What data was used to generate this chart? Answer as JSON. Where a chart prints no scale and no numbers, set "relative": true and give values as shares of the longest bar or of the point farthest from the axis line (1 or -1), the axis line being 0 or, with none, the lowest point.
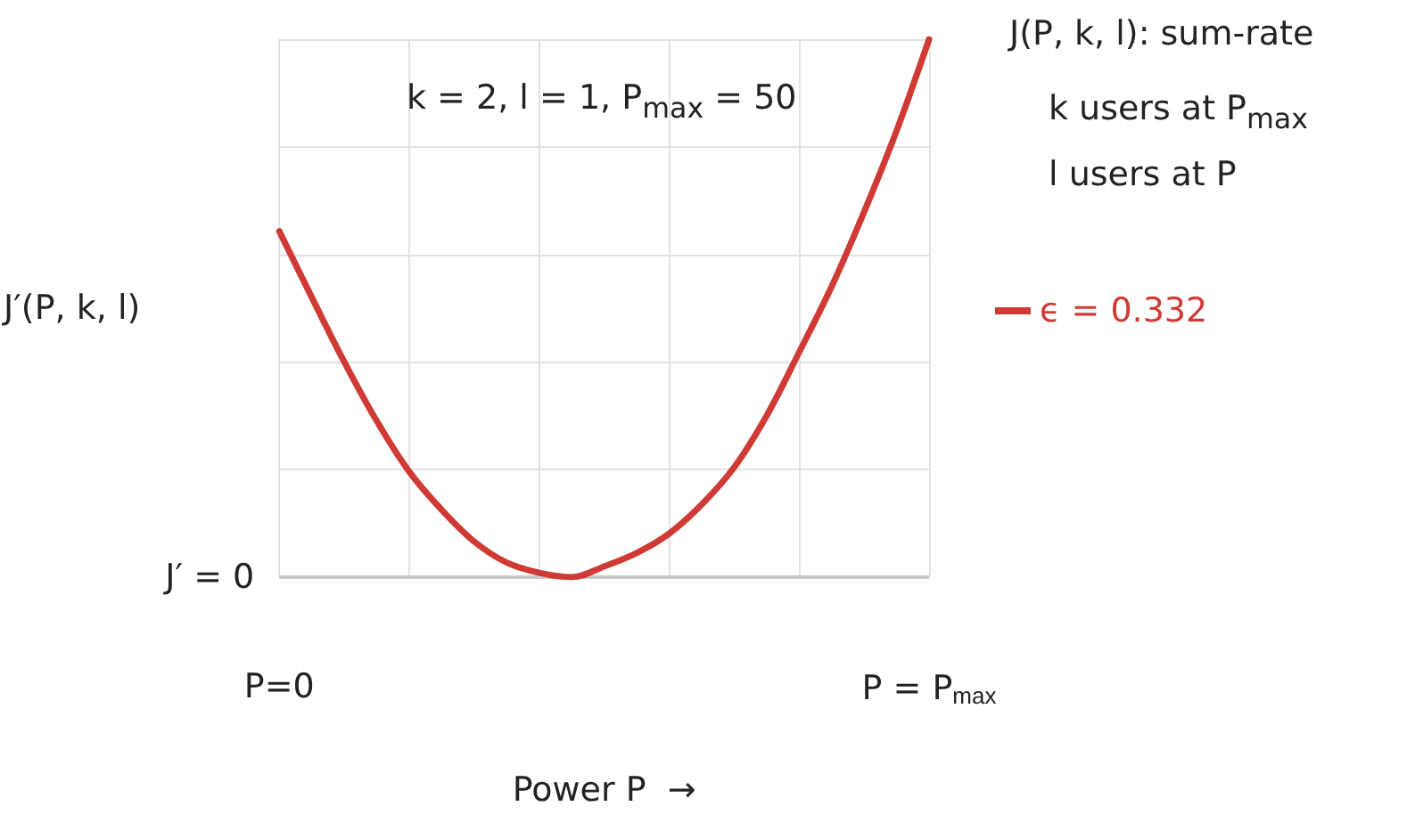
{
  "chart_data": {
    "type": "line",
    "relative": true,
    "categories": [
      "P=0",
      null,
      null,
      null,
      null,
      null,
      null,
      null,
      null,
      null,
      null,
      null,
      null,
      null,
      null,
      null,
      null,
      null,
      null,
      null,
      "P = P$_{max}$"
    ],
    "series": [
      {
        "name": "ϵ = 0.332",
        "color": "#d03a35",
        "values": [
          0.643,
          0.52,
          0.4,
          0.29,
          0.196,
          0.125,
          0.066,
          0.027,
          0.008,
          0,
          0.02,
          0.045,
          0.081,
          0.135,
          0.204,
          0.3,
          0.418,
          0.54,
          0.679,
          0.83,
          1
        ]
      }
    ],
    "xlabel": "Power P  →",
    "ylabel": "J′(P, k, l)",
    "ref_lines": [
      {
        "axis": "y",
        "value": 0,
        "label": "J′ = 0",
        "color": "#c8c8c8"
      }
    ],
    "annotations": [
      "k = 2, l = 1, P$_{max}$ = 50",
      "J(P, k, l): sum-rate",
      "k users at P$_{max}$",
      "l users at P"
    ],
    "legend": "right",
    "grid": true,
    "marker": "none",
    "line_style": "solid"
  }
}
